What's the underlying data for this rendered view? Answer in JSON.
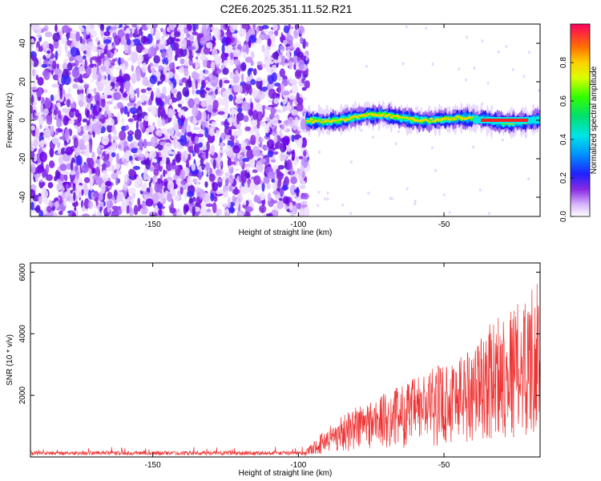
{
  "title": "C2E6.2025.351.11.52.R21",
  "colors": {
    "snr_line": "#ee3333",
    "axis": "#000000",
    "spectro_background": "#ffffff"
  },
  "chart_data": [
    {
      "type": "heatmap",
      "name": "spectrogram",
      "xlabel": "Height of straight line (km)",
      "ylabel": "Frequency (Hz)",
      "xlim": [
        -192,
        -17
      ],
      "ylim": [
        -50,
        50
      ],
      "xticks": [
        -150,
        -100,
        -50
      ],
      "yticks": [
        -40,
        -20,
        0,
        20,
        40
      ],
      "noise_region_x": [
        -192,
        -97
      ],
      "signal_track": {
        "x_start": -97,
        "x_end": -17,
        "center_freq": 0,
        "freq_wobble": 3,
        "strong_line_x": [
          -40,
          -17
        ]
      },
      "colorbar": {
        "label": "Normalized spectral amplitude",
        "range": [
          0,
          1
        ],
        "ticks": [
          0.0,
          0.2,
          0.4,
          0.6,
          0.8
        ],
        "colormap": "rainbow"
      }
    },
    {
      "type": "line",
      "name": "snr",
      "xlabel": "Height of straight line (km)",
      "ylabel": "SNR (10 * v/v)",
      "xlim": [
        -192,
        -17
      ],
      "ylim": [
        0,
        6300
      ],
      "xticks": [
        -150,
        -100,
        -50
      ],
      "yticks": [
        2000,
        4000,
        6000
      ],
      "series": [
        {
          "name": "SNR",
          "color": "#ee3333",
          "x_range": [
            -192,
            -17
          ],
          "baseline_level": 150,
          "baseline_x": [
            -192,
            -98
          ],
          "envelope_x": [
            -98,
            -90,
            -80,
            -70,
            -60,
            -50,
            -40,
            -30,
            -25,
            -20,
            -18,
            -17
          ],
          "envelope_max": [
            150,
            1000,
            1700,
            2100,
            2600,
            3100,
            3700,
            4800,
            5000,
            5500,
            6300,
            3000
          ]
        }
      ]
    }
  ]
}
